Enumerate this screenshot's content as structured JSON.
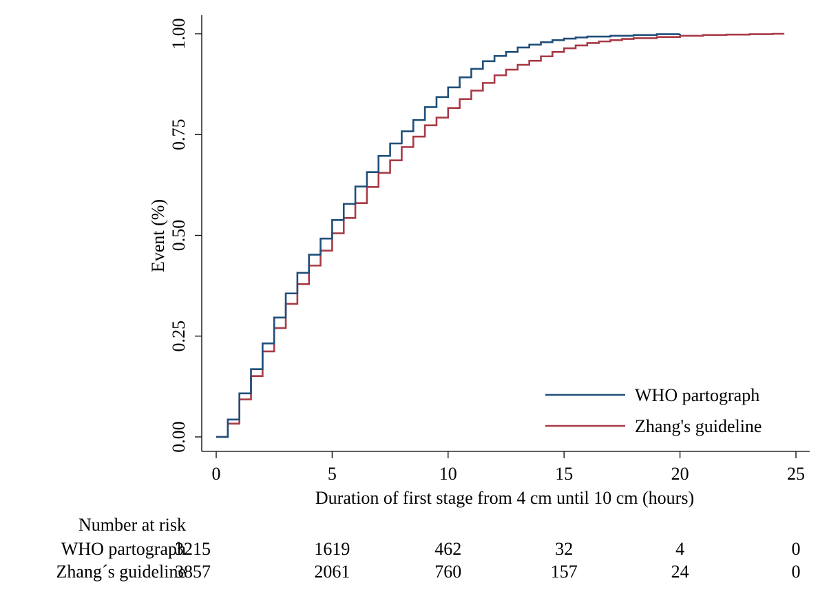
{
  "chart_data": {
    "type": "line",
    "ylabel": "Event (%)",
    "xlabel": "Duration of first stage from 4 cm until 10 cm (hours)",
    "xlim": [
      0,
      25
    ],
    "ylim": [
      0,
      1
    ],
    "xticks": [
      0,
      5,
      10,
      15,
      20,
      25
    ],
    "xtick_labels": [
      "0",
      "5",
      "10",
      "15",
      "20",
      "25"
    ],
    "yticks": [
      0,
      0.25,
      0.5,
      0.75,
      1
    ],
    "ytick_labels": [
      "0.00",
      "0.25",
      "0.50",
      "0.75",
      "1.00"
    ],
    "grid": false,
    "legend_position": "bottom-right",
    "series": [
      {
        "name": "WHO partograph",
        "color": "#1f4e79",
        "step": true,
        "x": [
          0,
          0.5,
          1,
          1.5,
          2,
          2.5,
          3,
          3.5,
          4,
          4.5,
          5,
          5.5,
          6,
          6.5,
          7,
          7.5,
          8,
          8.5,
          9,
          9.5,
          10,
          10.5,
          11,
          11.5,
          12,
          12.5,
          13,
          13.5,
          14,
          14.5,
          15,
          15.5,
          16,
          17,
          18,
          19,
          20
        ],
        "y": [
          0,
          0.043,
          0.108,
          0.168,
          0.232,
          0.296,
          0.356,
          0.407,
          0.452,
          0.492,
          0.538,
          0.578,
          0.621,
          0.657,
          0.697,
          0.728,
          0.758,
          0.786,
          0.818,
          0.843,
          0.867,
          0.892,
          0.913,
          0.932,
          0.945,
          0.955,
          0.966,
          0.973,
          0.979,
          0.984,
          0.988,
          0.991,
          0.993,
          0.995,
          0.997,
          0.999,
          1.0
        ]
      },
      {
        "name": "Zhang's guideline",
        "color": "#a83a46",
        "step": true,
        "x": [
          0,
          0.5,
          1,
          1.5,
          2,
          2.5,
          3,
          3.5,
          4,
          4.5,
          5,
          5.5,
          6,
          6.5,
          7,
          7.5,
          8,
          8.5,
          9,
          9.5,
          10,
          10.5,
          11,
          11.5,
          12,
          12.5,
          13,
          13.5,
          14,
          14.5,
          15,
          15.5,
          16,
          16.5,
          17,
          17.5,
          18,
          19,
          20,
          21,
          22,
          23,
          24,
          24.5
        ],
        "y": [
          0,
          0.033,
          0.093,
          0.151,
          0.212,
          0.27,
          0.33,
          0.379,
          0.425,
          0.462,
          0.505,
          0.543,
          0.58,
          0.62,
          0.655,
          0.686,
          0.719,
          0.745,
          0.773,
          0.792,
          0.816,
          0.838,
          0.859,
          0.878,
          0.897,
          0.911,
          0.923,
          0.933,
          0.944,
          0.955,
          0.964,
          0.971,
          0.977,
          0.981,
          0.984,
          0.987,
          0.989,
          0.992,
          0.995,
          0.997,
          0.998,
          0.999,
          1.0,
          1.0
        ]
      }
    ],
    "risk_table": {
      "title": "Number at risk",
      "times": [
        0,
        5,
        10,
        15,
        20,
        25
      ],
      "rows": [
        {
          "label": "WHO partograph",
          "values": [
            "3215",
            "1619",
            "462",
            "32",
            "4",
            "0"
          ]
        },
        {
          "label": "Zhang´s guideline",
          "values": [
            "3857",
            "2061",
            "760",
            "157",
            "24",
            "0"
          ]
        }
      ]
    }
  }
}
